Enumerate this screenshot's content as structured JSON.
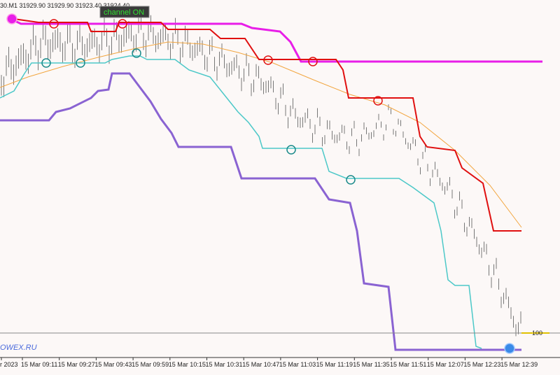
{
  "header": {
    "quote": "30.M1  31929.90 31929.90 31923.40 31924.40",
    "channel_button": "channel ON"
  },
  "watermark": "OWEX.RU",
  "price_marker": "100",
  "time_axis": [
    "r 2023",
    "15 Mar 09:11",
    "15 Mar 09:27",
    "15 Mar 09:43",
    "15 Mar 09:59",
    "15 Mar 10:15",
    "15 Mar 10:31",
    "15 Mar 10:47",
    "15 Mar 11:03",
    "15 Mar 11:19",
    "15 Mar 11:35",
    "15 Mar 11:51",
    "15 Mar 12:07",
    "15 Mar 12:23",
    "15 Mar 12:39"
  ]
}
